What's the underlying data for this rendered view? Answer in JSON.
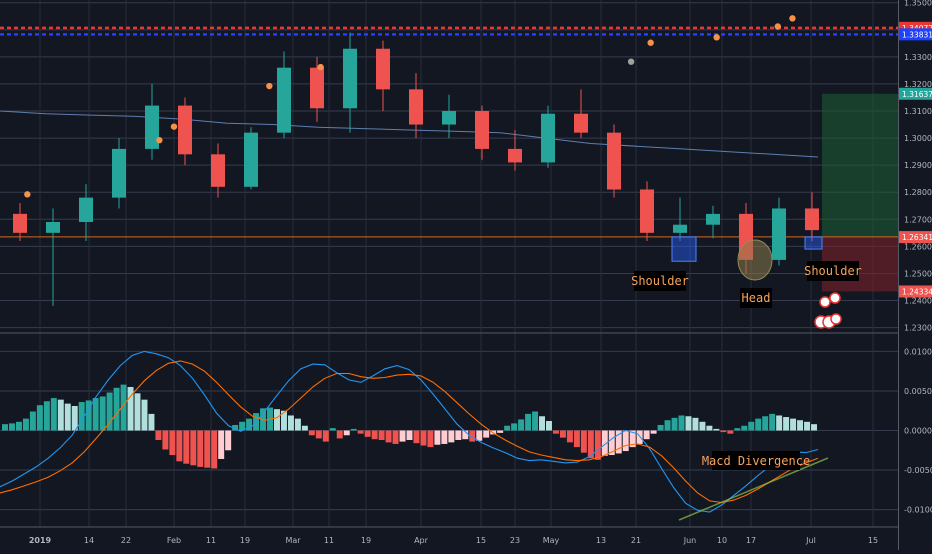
{
  "chart_data": [
    {
      "type": "candlestick",
      "title": "",
      "y_ticks": [
        "1.35000",
        "1.34000",
        "1.33000",
        "1.32000",
        "1.31000",
        "1.30000",
        "1.29000",
        "1.28000",
        "1.27000",
        "1.26000",
        "1.25000",
        "1.24000",
        "1.23000"
      ],
      "ylim": [
        1.228,
        1.351
      ],
      "x_ticks": [
        "2019",
        "14",
        "22",
        "Feb",
        "11",
        "19",
        "Mar",
        "11",
        "19",
        "Apr",
        "15",
        "23",
        "May",
        "13",
        "21",
        "Jun",
        "10",
        "17",
        "Jul",
        "15"
      ],
      "price_badges": [
        {
          "label": "1.34072",
          "value": 1.34072,
          "color": "#e53935"
        },
        {
          "label": "1.33831",
          "value": 1.33831,
          "color": "#1e40ff"
        },
        {
          "label": "1.31637",
          "value": 1.31637,
          "color": "#26a69a"
        },
        {
          "label": "1.26350",
          "value": 1.2635,
          "color": "#363a45"
        },
        {
          "label": "1.26341",
          "value": 1.26341,
          "color": "#ef5350"
        },
        {
          "label": "1.24334",
          "value": 1.24334,
          "color": "#ef5350"
        }
      ],
      "horizontal_levels": [
        {
          "value": 1.34072,
          "color": "#e53935",
          "style": "dashed"
        },
        {
          "value": 1.33831,
          "color": "#1e40ff",
          "style": "dashed"
        },
        {
          "value": 1.2635,
          "color": "#d2691e",
          "style": "solid"
        }
      ],
      "moving_average": {
        "color": "#5d7fb0",
        "values": [
          1.31,
          1.309,
          1.3085,
          1.308,
          1.307,
          1.3055,
          1.305,
          1.304,
          1.3035,
          1.303,
          1.3025,
          1.302,
          1.3,
          1.298,
          1.297,
          1.296,
          1.295,
          1.294,
          1.293
        ]
      },
      "candles": [
        {
          "x": "w1",
          "o": 1.272,
          "h": 1.276,
          "l": 1.262,
          "c": 1.265
        },
        {
          "x": "w2",
          "o": 1.265,
          "h": 1.274,
          "l": 1.238,
          "c": 1.269
        },
        {
          "x": "w3",
          "o": 1.269,
          "h": 1.283,
          "l": 1.262,
          "c": 1.278
        },
        {
          "x": "w4",
          "o": 1.278,
          "h": 1.3,
          "l": 1.274,
          "c": 1.296
        },
        {
          "x": "w5",
          "o": 1.296,
          "h": 1.32,
          "l": 1.292,
          "c": 1.312
        },
        {
          "x": "w6",
          "o": 1.312,
          "h": 1.315,
          "l": 1.29,
          "c": 1.294
        },
        {
          "x": "w7",
          "o": 1.294,
          "h": 1.298,
          "l": 1.278,
          "c": 1.282
        },
        {
          "x": "w8",
          "o": 1.282,
          "h": 1.304,
          "l": 1.281,
          "c": 1.302
        },
        {
          "x": "w9",
          "o": 1.302,
          "h": 1.332,
          "l": 1.3,
          "c": 1.326
        },
        {
          "x": "w10",
          "o": 1.326,
          "h": 1.33,
          "l": 1.306,
          "c": 1.311
        },
        {
          "x": "w11",
          "o": 1.311,
          "h": 1.339,
          "l": 1.302,
          "c": 1.333
        },
        {
          "x": "w12",
          "o": 1.333,
          "h": 1.336,
          "l": 1.31,
          "c": 1.318
        },
        {
          "x": "w13",
          "o": 1.318,
          "h": 1.324,
          "l": 1.3,
          "c": 1.305
        },
        {
          "x": "w14",
          "o": 1.305,
          "h": 1.316,
          "l": 1.3,
          "c": 1.31
        },
        {
          "x": "w15",
          "o": 1.31,
          "h": 1.312,
          "l": 1.292,
          "c": 1.296
        },
        {
          "x": "w16",
          "o": 1.296,
          "h": 1.303,
          "l": 1.288,
          "c": 1.291
        },
        {
          "x": "w17",
          "o": 1.291,
          "h": 1.312,
          "l": 1.289,
          "c": 1.309
        },
        {
          "x": "w18",
          "o": 1.309,
          "h": 1.318,
          "l": 1.3,
          "c": 1.302
        },
        {
          "x": "w19",
          "o": 1.302,
          "h": 1.305,
          "l": 1.278,
          "c": 1.281
        },
        {
          "x": "w20",
          "o": 1.281,
          "h": 1.284,
          "l": 1.262,
          "c": 1.265
        },
        {
          "x": "w21",
          "o": 1.265,
          "h": 1.278,
          "l": 1.262,
          "c": 1.268
        },
        {
          "x": "w22",
          "o": 1.268,
          "h": 1.275,
          "l": 1.263,
          "c": 1.272
        },
        {
          "x": "w23",
          "o": 1.272,
          "h": 1.276,
          "l": 1.25,
          "c": 1.255
        },
        {
          "x": "w24",
          "o": 1.255,
          "h": 1.278,
          "l": 1.253,
          "c": 1.274
        },
        {
          "x": "w25",
          "o": 1.274,
          "h": 1.28,
          "l": 1.262,
          "c": 1.266
        }
      ],
      "fractal_markers": [
        {
          "x": 0.3,
          "value": 1.277,
          "kind": "up"
        },
        {
          "x": 5.7,
          "value": 1.297,
          "kind": "up"
        },
        {
          "x": 6.3,
          "value": 1.302,
          "kind": "up"
        },
        {
          "x": 10.2,
          "value": 1.317,
          "kind": "up"
        },
        {
          "x": 12.3,
          "value": 1.324,
          "kind": "up"
        },
        {
          "x": 25.0,
          "value": 1.326,
          "kind": "down"
        },
        {
          "x": 25.8,
          "value": 1.333,
          "kind": "up"
        },
        {
          "x": 28.5,
          "value": 1.335,
          "kind": "up"
        },
        {
          "x": 31.0,
          "value": 1.339,
          "kind": "up"
        },
        {
          "x": 31.6,
          "value": 1.342,
          "kind": "up"
        }
      ],
      "trade_zone": {
        "entry": 1.2635,
        "target": 1.31637,
        "stop": 1.24334,
        "start_index": 23.7
      },
      "pattern_boxes": [
        {
          "label": "left",
          "x": 22.3,
          "top": 1.2635,
          "bottom": 1.2545
        },
        {
          "label": "right",
          "x": 24.6,
          "top": 1.2635,
          "bottom": 1.259
        }
      ],
      "annotations": [
        "Shoulder",
        "Head",
        "Shoulder"
      ]
    },
    {
      "type": "macd",
      "y_ticks": [
        "0.01000",
        "0.00500",
        "0.00000",
        "-0.00500",
        "-0.01000"
      ],
      "ylim": [
        -0.0122,
        0.0122
      ],
      "histogram": [
        0.0008,
        0.0009,
        0.0011,
        0.0015,
        0.0024,
        0.0032,
        0.0037,
        0.0041,
        0.0039,
        0.0034,
        0.0031,
        0.0036,
        0.0038,
        0.0041,
        0.0043,
        0.0048,
        0.0054,
        0.0058,
        0.0055,
        0.0047,
        0.0039,
        0.0021,
        -0.0012,
        -0.0024,
        -0.0031,
        -0.0039,
        -0.0042,
        -0.0044,
        -0.0046,
        -0.0047,
        -0.0048,
        -0.0036,
        -0.0025,
        0.0007,
        0.0011,
        0.0015,
        0.0022,
        0.0028,
        0.0029,
        0.0027,
        0.0025,
        0.0019,
        0.0015,
        0.0006,
        -0.0006,
        -0.001,
        -0.0014,
        0.0003,
        -0.001,
        -0.0006,
        0.0002,
        -0.0004,
        -0.0008,
        -0.0011,
        -0.0012,
        -0.0015,
        -0.0017,
        -0.0014,
        -0.0012,
        -0.0016,
        -0.0019,
        -0.0021,
        -0.0018,
        -0.0017,
        -0.0015,
        -0.0012,
        -0.0011,
        -0.0014,
        -0.0013,
        -0.0009,
        -0.0005,
        -0.0003,
        0.0006,
        0.0009,
        0.0014,
        0.0021,
        0.0024,
        0.0018,
        0.0012,
        -0.0004,
        -0.0009,
        -0.0015,
        -0.0021,
        -0.0028,
        -0.0035,
        -0.0037,
        -0.0032,
        -0.0031,
        -0.0029,
        -0.0026,
        -0.0021,
        -0.0017,
        -0.0011,
        -0.0004,
        0.0007,
        0.0013,
        0.0016,
        0.0019,
        0.0018,
        0.0016,
        0.0011,
        0.0006,
        0.0002,
        -0.0002,
        -0.0004,
        0.0003,
        0.0006,
        0.0011,
        0.0015,
        0.0018,
        0.0021,
        0.0019,
        0.0017,
        0.0015,
        0.0013,
        0.0011,
        0.0008
      ],
      "macd_line": [
        -0.0071,
        -0.0064,
        -0.0055,
        -0.0046,
        -0.0035,
        -0.0022,
        -0.0006,
        0.0018,
        0.0043,
        0.0064,
        0.0082,
        0.0095,
        0.01,
        0.0097,
        0.0092,
        0.0082,
        0.0066,
        0.0045,
        0.0022,
        0.0006,
        -0.0001,
        0.0006,
        0.0024,
        0.0044,
        0.0063,
        0.0078,
        0.0084,
        0.0083,
        0.0073,
        0.0064,
        0.0061,
        0.0069,
        0.0078,
        0.0082,
        0.0077,
        0.0064,
        0.0046,
        0.0027,
        0.0008,
        -0.0006,
        -0.0015,
        -0.0022,
        -0.0028,
        -0.0035,
        -0.0038,
        -0.0037,
        -0.0039,
        -0.0041,
        -0.004,
        -0.0033,
        -0.0021,
        -0.0009,
        0.0,
        -0.0004,
        -0.0023,
        -0.0048,
        -0.0072,
        -0.0092,
        -0.0101,
        -0.0103,
        -0.0094,
        -0.0082,
        -0.007,
        -0.0057,
        -0.0045,
        -0.0035,
        -0.0027,
        -0.0028,
        -0.0024
      ],
      "signal_line": [
        -0.0079,
        -0.0075,
        -0.007,
        -0.0065,
        -0.0059,
        -0.0051,
        -0.0041,
        -0.0027,
        -0.001,
        0.0008,
        0.0027,
        0.0046,
        0.0063,
        0.0076,
        0.0085,
        0.0088,
        0.0084,
        0.0075,
        0.0061,
        0.0045,
        0.003,
        0.0018,
        0.0013,
        0.0016,
        0.0027,
        0.0041,
        0.0055,
        0.0066,
        0.0072,
        0.0072,
        0.0068,
        0.0066,
        0.0067,
        0.007,
        0.0071,
        0.0069,
        0.0061,
        0.0049,
        0.0035,
        0.0021,
        0.0008,
        -0.0003,
        -0.0012,
        -0.002,
        -0.0027,
        -0.0031,
        -0.0034,
        -0.0037,
        -0.0038,
        -0.0037,
        -0.0033,
        -0.0026,
        -0.0019,
        -0.0017,
        -0.0021,
        -0.0032,
        -0.0047,
        -0.0064,
        -0.0079,
        -0.0089,
        -0.0091,
        -0.0088,
        -0.0082,
        -0.0074,
        -0.0065,
        -0.0056,
        -0.0047,
        -0.0041,
        -0.0035
      ],
      "annotations": [
        "Macd Divergence"
      ]
    }
  ]
}
